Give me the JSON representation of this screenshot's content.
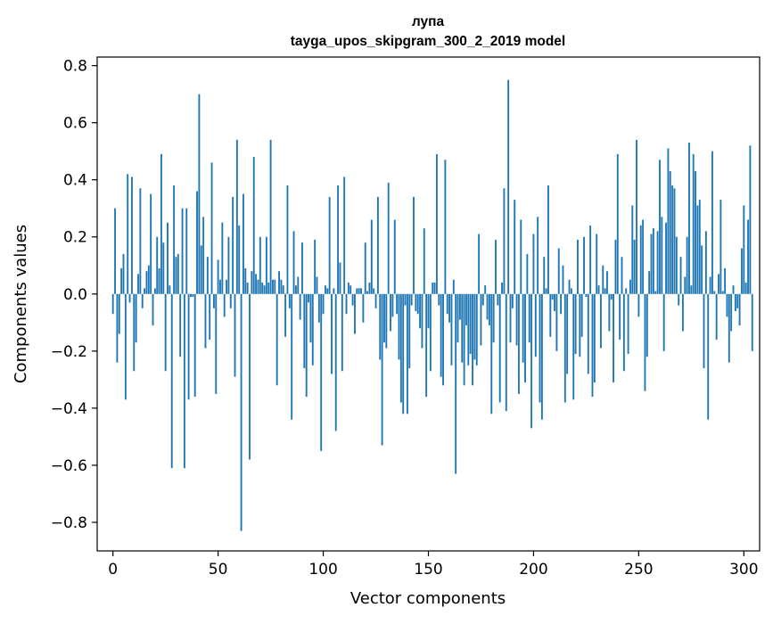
{
  "chart_data": {
    "type": "bar",
    "title": "лупа",
    "subtitle": "tayga_upos_skipgram_300_2_2019 model",
    "xlabel": "Vector components",
    "ylabel": "Components values",
    "xlim": [
      -7.5,
      307.5
    ],
    "ylim": [
      -0.9,
      0.83
    ],
    "x_ticks": [
      0,
      50,
      100,
      150,
      200,
      250,
      300
    ],
    "y_ticks": [
      -0.8,
      -0.6,
      -0.4,
      -0.2,
      0.0,
      0.2,
      0.4,
      0.6,
      0.8
    ],
    "y_tick_labels": [
      "−0.8",
      "−0.6",
      "−0.4",
      "−0.2",
      "0.0",
      "0.2",
      "0.4",
      "0.6",
      "0.8"
    ],
    "bar_color": "#1f77b4",
    "grid": false,
    "values": [
      -0.07,
      0.3,
      -0.24,
      -0.14,
      0.09,
      0.14,
      -0.37,
      0.42,
      -0.03,
      0.41,
      -0.27,
      -0.17,
      0.07,
      0.37,
      -0.05,
      0.02,
      0.08,
      0.1,
      0.35,
      -0.11,
      0.02,
      0.2,
      0.09,
      0.49,
      0.18,
      -0.27,
      0.25,
      0.03,
      -0.61,
      0.38,
      0.13,
      0.14,
      -0.22,
      0.3,
      -0.61,
      0.3,
      -0.37,
      -0.01,
      -0.01,
      -0.36,
      0.36,
      0.7,
      0.17,
      0.27,
      -0.19,
      0.13,
      -0.16,
      0.46,
      -0.05,
      -0.35,
      0.12,
      0.05,
      0.25,
      -0.08,
      0.05,
      0.2,
      -0.05,
      0.34,
      -0.29,
      0.54,
      0.24,
      -0.83,
      0.35,
      0.09,
      0.04,
      -0.58,
      0.08,
      0.48,
      0.07,
      0.05,
      0.2,
      0.04,
      0.03,
      0.2,
      0.04,
      0.54,
      0.05,
      0.05,
      -0.32,
      0.08,
      0.05,
      0.03,
      -0.15,
      0.38,
      -0.05,
      -0.44,
      0.22,
      0.03,
      0.06,
      -0.09,
      0.18,
      -0.26,
      -0.36,
      -0.03,
      -0.17,
      -0.25,
      0.19,
      0.06,
      -0.1,
      -0.55,
      -0.07,
      0.03,
      0.02,
      0.34,
      -0.28,
      0.02,
      -0.48,
      0.38,
      0.11,
      -0.27,
      0.41,
      -0.07,
      0.04,
      0.03,
      -0.04,
      -0.14,
      0.02,
      0.02,
      0.02,
      -0.1,
      0.18,
      0.01,
      0.04,
      0.26,
      0.02,
      -0.05,
      0.34,
      -0.23,
      -0.53,
      -0.17,
      -0.19,
      0.39,
      -0.13,
      -0.08,
      0.26,
      -0.07,
      -0.23,
      -0.38,
      -0.42,
      -0.04,
      -0.42,
      -0.26,
      -0.04,
      0.34,
      -0.06,
      -0.07,
      -0.12,
      -0.19,
      0.23,
      -0.36,
      -0.12,
      -0.27,
      0.04,
      0.04,
      0.49,
      -0.04,
      -0.29,
      -0.32,
      0.47,
      -0.07,
      -0.1,
      -0.25,
      0.05,
      -0.63,
      -0.17,
      -0.09,
      -0.24,
      -0.32,
      -0.11,
      -0.25,
      -0.21,
      -0.32,
      -0.23,
      -0.25,
      0.21,
      -0.18,
      -0.04,
      0.03,
      -0.09,
      -0.11,
      -0.42,
      -0.17,
      0.19,
      -0.04,
      -0.38,
      0.04,
      0.37,
      -0.41,
      0.75,
      -0.17,
      -0.05,
      0.33,
      -0.18,
      -0.35,
      0.26,
      -0.24,
      -0.31,
      0.14,
      -0.17,
      -0.47,
      0.21,
      -0.22,
      0.27,
      -0.38,
      -0.44,
      0.13,
      0.02,
      0.38,
      -0.15,
      -0.02,
      -0.06,
      -0.2,
      0.16,
      -0.07,
      0.1,
      -0.38,
      -0.28,
      0.05,
      0.02,
      -0.37,
      -0.21,
      0.19,
      -0.22,
      -0.15,
      0.2,
      -0.01,
      -0.28,
      0.24,
      -0.36,
      -0.31,
      0.21,
      0.03,
      -0.19,
      0.1,
      0.02,
      0.08,
      -0.13,
      -0.02,
      -0.31,
      0.19,
      0.49,
      -0.16,
      0.13,
      -0.27,
      0.02,
      -0.21,
      0.05,
      0.31,
      0.19,
      0.54,
      -0.08,
      0.24,
      0.26,
      -0.34,
      -0.22,
      0.08,
      0.21,
      0.23,
      0.01,
      0.22,
      0.47,
      0.27,
      -0.2,
      0.25,
      0.51,
      0.43,
      0.38,
      0.37,
      0.2,
      -0.04,
      0.13,
      -0.13,
      0.06,
      0.2,
      0.53,
      0.03,
      0.49,
      0.43,
      0.31,
      0.33,
      0.17,
      -0.26,
      0.22,
      -0.44,
      0.06,
      0.5,
      0.01,
      -0.16,
      0.07,
      0.33,
      0.01,
      0.09,
      -0.08,
      -0.24,
      -0.13,
      0.03,
      -0.06,
      -0.05,
      -0.11,
      0.16,
      0.31,
      0.04,
      0.26,
      0.52,
      -0.2,
      0.0
    ]
  }
}
